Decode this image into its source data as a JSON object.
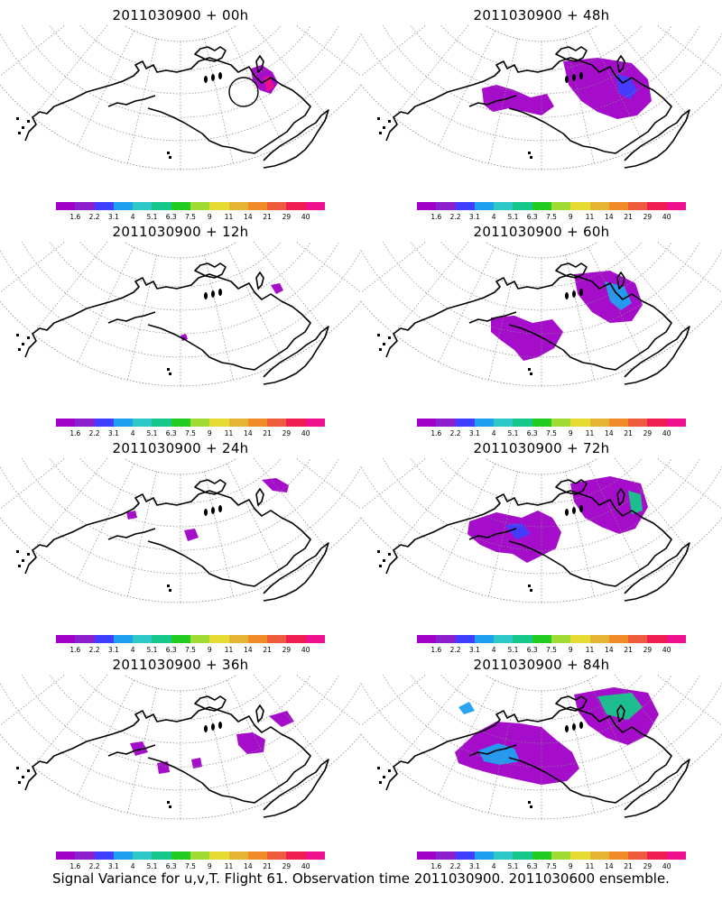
{
  "panels": [
    {
      "title": "2011030900 + 00h"
    },
    {
      "title": "2011030900 + 48h"
    },
    {
      "title": "2011030900 + 12h"
    },
    {
      "title": "2011030900 + 60h"
    },
    {
      "title": "2011030900 + 24h"
    },
    {
      "title": "2011030900 + 72h"
    },
    {
      "title": "2011030900 + 36h"
    },
    {
      "title": "2011030900 + 84h"
    }
  ],
  "colorbar": {
    "colors": [
      "#a000c8",
      "#8c1ecd",
      "#3f3fff",
      "#1ea0f0",
      "#2ec8c8",
      "#14c88c",
      "#22cc22",
      "#a0dc32",
      "#e6dc32",
      "#e6b432",
      "#f08c28",
      "#f05a3c",
      "#f01e50",
      "#f00f8c"
    ],
    "tick_labels": [
      "1.6",
      "2.2",
      "3.1",
      "4",
      "5.1",
      "6.3",
      "7.5",
      "9",
      "11",
      "14",
      "21",
      "29",
      "40"
    ]
  },
  "caption": "Signal Variance for u,v,T. Flight 61. Observation time 2011030900. 2011030600 ensemble."
}
